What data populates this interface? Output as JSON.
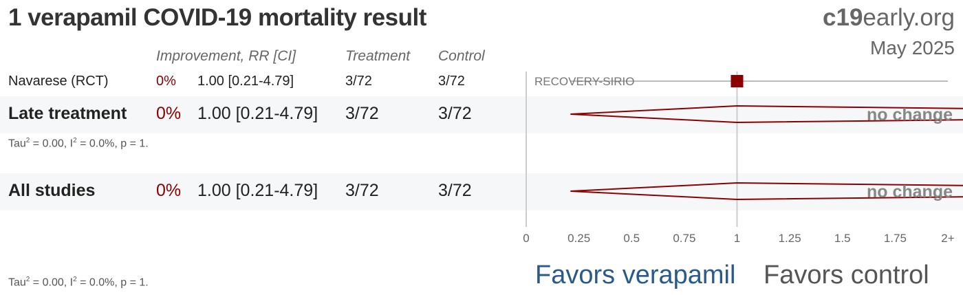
{
  "header": {
    "title": "1 verapamil COVID-19 mortality result",
    "brand_bold": "c19",
    "brand_rest": "early.org",
    "date": "May 2025"
  },
  "columns": {
    "improvement": "Improvement, RR [CI]",
    "treatment": "Treatment",
    "control": "Control"
  },
  "rows": [
    {
      "study": "Navarese (RCT)",
      "improvement": "0%",
      "rr_ci": "1.00 [0.21-4.79]",
      "treatment": "3/72",
      "control": "3/72",
      "trial_label": "RECOVERY-SIRIO"
    }
  ],
  "groups": [
    {
      "name": "Late treatment",
      "improvement": "0%",
      "rr_ci": "1.00 [0.21-4.79]",
      "treatment": "3/72",
      "control": "3/72",
      "stats": "Tau² = 0.00, I² = 0.0%, p = 1.",
      "verdict": "no change"
    },
    {
      "name": "All studies",
      "improvement": "0%",
      "rr_ci": "1.00 [0.21-4.79]",
      "treatment": "3/72",
      "control": "3/72",
      "stats": "Tau² = 0.00, I² = 0.0%, p = 1.",
      "verdict": "no change"
    }
  ],
  "favors": {
    "left": "Favors verapamil",
    "right": "Favors control"
  },
  "colors": {
    "accent": "#8b0000",
    "favors_left": "#2a5a8a",
    "favors_right": "#555555"
  },
  "chart_data": {
    "type": "forest",
    "scale": "linear",
    "xlim": [
      0,
      2
    ],
    "ticks": [
      0,
      0.25,
      0.5,
      0.75,
      1,
      1.25,
      1.5,
      1.75,
      2
    ],
    "tick_labels": [
      "0",
      "0.25",
      "0.5",
      "0.75",
      "1",
      "1.25",
      "1.5",
      "1.75",
      "2+"
    ],
    "null_value": 1,
    "studies": [
      {
        "label": "RECOVERY-SIRIO",
        "rr": 1.0,
        "ci_low": 0.21,
        "ci_high": 4.79
      }
    ],
    "pooled": [
      {
        "label": "Late treatment",
        "rr": 1.0,
        "ci_low": 0.21,
        "ci_high": 4.79
      },
      {
        "label": "All studies",
        "rr": 1.0,
        "ci_low": 0.21,
        "ci_high": 4.79
      }
    ]
  }
}
